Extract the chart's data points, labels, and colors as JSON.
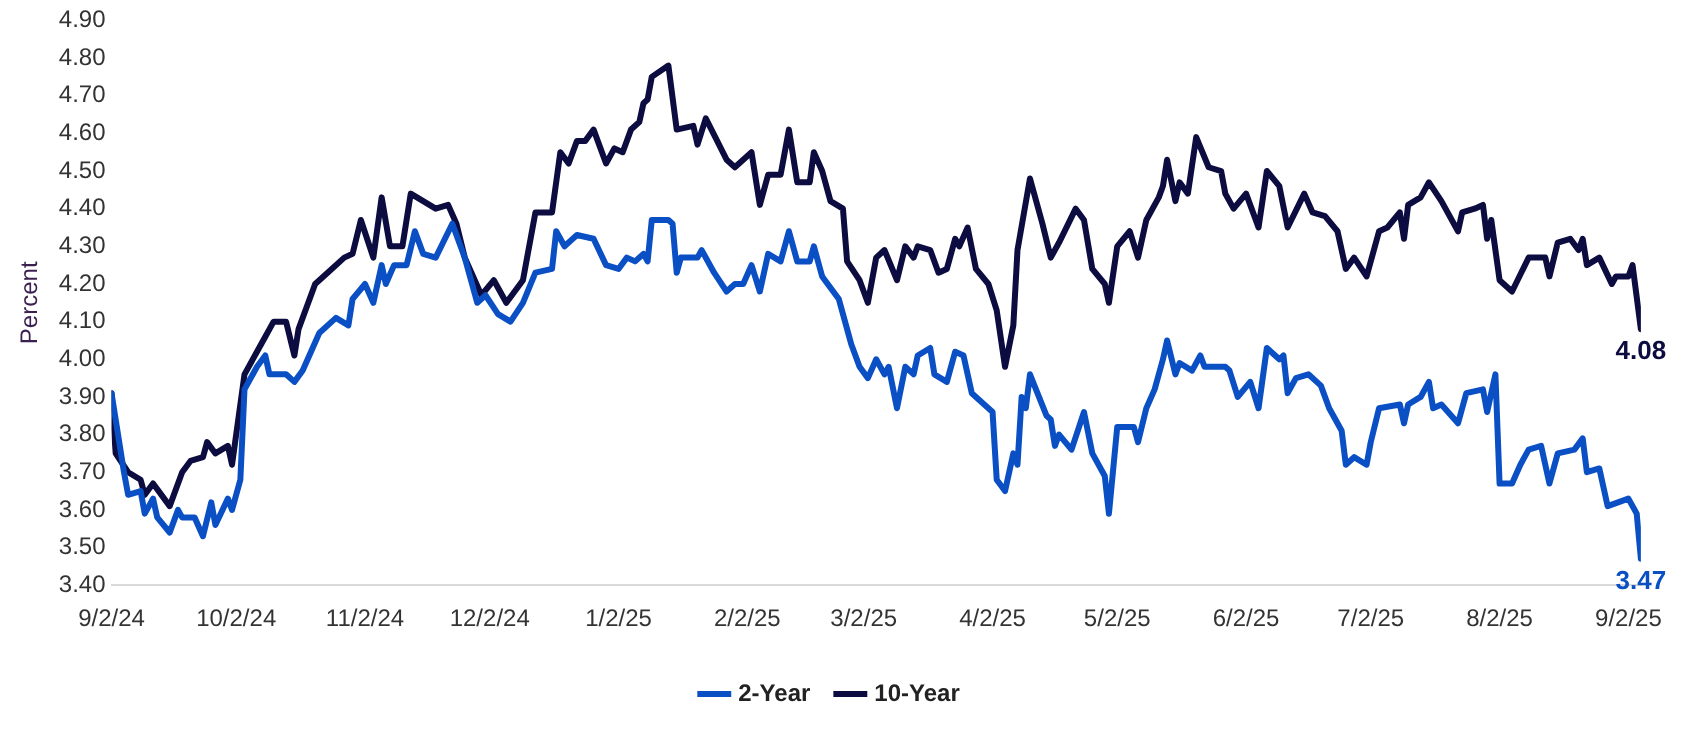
{
  "chart_data": {
    "type": "line",
    "ylabel": "Percent",
    "grid": false,
    "legend": "bottom",
    "marker": "none",
    "line_style": "solid",
    "xticks": [
      {
        "value": "2024-09-02",
        "label": "9/2/24"
      },
      {
        "value": "2024-10-02",
        "label": "10/2/24"
      },
      {
        "value": "2024-11-02",
        "label": "11/2/24"
      },
      {
        "value": "2024-12-02",
        "label": "12/2/24"
      },
      {
        "value": "2025-01-02",
        "label": "1/2/25"
      },
      {
        "value": "2025-02-02",
        "label": "2/2/25"
      },
      {
        "value": "2025-03-02",
        "label": "3/2/25"
      },
      {
        "value": "2025-04-02",
        "label": "4/2/25"
      },
      {
        "value": "2025-05-02",
        "label": "5/2/25"
      },
      {
        "value": "2025-06-02",
        "label": "6/2/25"
      },
      {
        "value": "2025-07-02",
        "label": "7/2/25"
      },
      {
        "value": "2025-08-02",
        "label": "8/2/25"
      },
      {
        "value": "2025-09-02",
        "label": "9/2/25"
      }
    ],
    "xlim": [
      "2024-09-02",
      "2025-09-05"
    ],
    "ylim": [
      3.4,
      4.9
    ],
    "yticks": [
      {
        "value": 3.4,
        "label": "3.40"
      },
      {
        "value": 3.5,
        "label": "3.50"
      },
      {
        "value": 3.6,
        "label": "3.60"
      },
      {
        "value": 3.7,
        "label": "3.70"
      },
      {
        "value": 3.8,
        "label": "3.80"
      },
      {
        "value": 3.9,
        "label": "3.90"
      },
      {
        "value": 4.0,
        "label": "4.00"
      },
      {
        "value": 4.1,
        "label": "4.10"
      },
      {
        "value": 4.2,
        "label": "4.20"
      },
      {
        "value": 4.3,
        "label": "4.30"
      },
      {
        "value": 4.4,
        "label": "4.40"
      },
      {
        "value": 4.5,
        "label": "4.50"
      },
      {
        "value": 4.6,
        "label": "4.60"
      },
      {
        "value": 4.7,
        "label": "4.70"
      },
      {
        "value": 4.8,
        "label": "4.80"
      },
      {
        "value": 4.9,
        "label": "4.90"
      }
    ],
    "series": [
      {
        "name": "2-Year",
        "color": "#0a50c4",
        "x": [
          "2024-09-02",
          "2024-09-05",
          "2024-09-06",
          "2024-09-09",
          "2024-09-10",
          "2024-09-12",
          "2024-09-13",
          "2024-09-16",
          "2024-09-18",
          "2024-09-19",
          "2024-09-22",
          "2024-09-24",
          "2024-09-26",
          "2024-09-27",
          "2024-09-30",
          "2024-10-01",
          "2024-10-03",
          "2024-10-04",
          "2024-10-07",
          "2024-10-09",
          "2024-10-10",
          "2024-10-14",
          "2024-10-16",
          "2024-10-18",
          "2024-10-22",
          "2024-10-26",
          "2024-10-29",
          "2024-10-30",
          "2024-11-02",
          "2024-11-04",
          "2024-11-06",
          "2024-11-07",
          "2024-11-09",
          "2024-11-12",
          "2024-11-14",
          "2024-11-16",
          "2024-11-19",
          "2024-11-23",
          "2024-11-26",
          "2024-11-29",
          "2024-12-01",
          "2024-12-04",
          "2024-12-07",
          "2024-12-10",
          "2024-12-13",
          "2024-12-17",
          "2024-12-18",
          "2024-12-20",
          "2024-12-23",
          "2024-12-27",
          "2024-12-30",
          "2025-01-02",
          "2025-01-04",
          "2025-01-06",
          "2025-01-08",
          "2025-01-09",
          "2025-01-10",
          "2025-01-14",
          "2025-01-15",
          "2025-01-16",
          "2025-01-17",
          "2025-01-21",
          "2025-01-22",
          "2025-01-25",
          "2025-01-28",
          "2025-01-30",
          "2025-02-01",
          "2025-02-03",
          "2025-02-05",
          "2025-02-07",
          "2025-02-10",
          "2025-02-12",
          "2025-02-14",
          "2025-02-17",
          "2025-02-18",
          "2025-02-20",
          "2025-02-22",
          "2025-02-24",
          "2025-02-26",
          "2025-02-27",
          "2025-03-01",
          "2025-03-03",
          "2025-03-05",
          "2025-03-07",
          "2025-03-08",
          "2025-03-10",
          "2025-03-12",
          "2025-03-14",
          "2025-03-15",
          "2025-03-18",
          "2025-03-19",
          "2025-03-22",
          "2025-03-24",
          "2025-03-26",
          "2025-03-28",
          "2025-03-30",
          "2025-04-02",
          "2025-04-03",
          "2025-04-05",
          "2025-04-07",
          "2025-04-08",
          "2025-04-09",
          "2025-04-10",
          "2025-04-11",
          "2025-04-15",
          "2025-04-16",
          "2025-04-17",
          "2025-04-18",
          "2025-04-21",
          "2025-04-24",
          "2025-04-26",
          "2025-04-29",
          "2025-04-30",
          "2025-05-02",
          "2025-05-06",
          "2025-05-07",
          "2025-05-09",
          "2025-05-11",
          "2025-05-13",
          "2025-05-14",
          "2025-05-16",
          "2025-05-17",
          "2025-05-20",
          "2025-05-22",
          "2025-05-23",
          "2025-05-28",
          "2025-05-29",
          "2025-05-31",
          "2025-06-03",
          "2025-06-05",
          "2025-06-07",
          "2025-06-10",
          "2025-06-11",
          "2025-06-12",
          "2025-06-14",
          "2025-06-17",
          "2025-06-20",
          "2025-06-22",
          "2025-06-25",
          "2025-06-26",
          "2025-06-28",
          "2025-07-01",
          "2025-07-02",
          "2025-07-04",
          "2025-07-09",
          "2025-07-10",
          "2025-07-11",
          "2025-07-14",
          "2025-07-16",
          "2025-07-17",
          "2025-07-19",
          "2025-07-23",
          "2025-07-25",
          "2025-07-29",
          "2025-07-30",
          "2025-08-01",
          "2025-08-02",
          "2025-08-05",
          "2025-08-07",
          "2025-08-09",
          "2025-08-12",
          "2025-08-14",
          "2025-08-16",
          "2025-08-20",
          "2025-08-22",
          "2025-08-23",
          "2025-08-26",
          "2025-08-28",
          "2025-09-02",
          "2025-09-04",
          "2025-09-05"
        ],
        "values": [
          3.91,
          3.7,
          3.64,
          3.65,
          3.59,
          3.63,
          3.58,
          3.54,
          3.6,
          3.58,
          3.58,
          3.53,
          3.62,
          3.56,
          3.63,
          3.6,
          3.68,
          3.92,
          3.98,
          4.01,
          3.96,
          3.96,
          3.94,
          3.97,
          4.07,
          4.11,
          4.09,
          4.16,
          4.2,
          4.15,
          4.25,
          4.2,
          4.25,
          4.25,
          4.34,
          4.28,
          4.27,
          4.36,
          4.27,
          4.15,
          4.17,
          4.12,
          4.1,
          4.15,
          4.23,
          4.24,
          4.34,
          4.3,
          4.33,
          4.32,
          4.25,
          4.24,
          4.27,
          4.26,
          4.28,
          4.26,
          4.37,
          4.37,
          4.36,
          4.23,
          4.27,
          4.27,
          4.29,
          4.23,
          4.18,
          4.2,
          4.2,
          4.25,
          4.18,
          4.28,
          4.26,
          4.34,
          4.26,
          4.26,
          4.3,
          4.22,
          4.19,
          4.16,
          4.08,
          4.04,
          3.98,
          3.95,
          4.0,
          3.96,
          3.98,
          3.87,
          3.98,
          3.96,
          4.01,
          4.03,
          3.96,
          3.94,
          4.02,
          4.01,
          3.91,
          3.89,
          3.86,
          3.68,
          3.65,
          3.75,
          3.72,
          3.9,
          3.87,
          3.96,
          3.85,
          3.84,
          3.77,
          3.8,
          3.76,
          3.86,
          3.75,
          3.69,
          3.59,
          3.82,
          3.82,
          3.78,
          3.87,
          3.92,
          4.0,
          4.05,
          3.96,
          3.99,
          3.97,
          4.01,
          3.98,
          3.98,
          3.97,
          3.9,
          3.94,
          3.87,
          4.03,
          4.0,
          4.01,
          3.91,
          3.95,
          3.96,
          3.93,
          3.87,
          3.81,
          3.72,
          3.74,
          3.72,
          3.78,
          3.87,
          3.88,
          3.83,
          3.88,
          3.9,
          3.94,
          3.87,
          3.88,
          3.83,
          3.91,
          3.92,
          3.86,
          3.96,
          3.67,
          3.67,
          3.72,
          3.76,
          3.77,
          3.67,
          3.75,
          3.76,
          3.79,
          3.7,
          3.71,
          3.61,
          3.63,
          3.59,
          3.47
        ]
      },
      {
        "name": "10-Year",
        "color": "#0c0c40",
        "x": [
          "2024-09-02",
          "2024-09-03",
          "2024-09-06",
          "2024-09-09",
          "2024-09-10",
          "2024-09-12",
          "2024-09-16",
          "2024-09-19",
          "2024-09-21",
          "2024-09-24",
          "2024-09-25",
          "2024-09-27",
          "2024-09-30",
          "2024-10-01",
          "2024-10-04",
          "2024-10-07",
          "2024-10-09",
          "2024-10-11",
          "2024-10-14",
          "2024-10-16",
          "2024-10-17",
          "2024-10-21",
          "2024-10-24",
          "2024-10-28",
          "2024-10-30",
          "2024-11-01",
          "2024-11-04",
          "2024-11-06",
          "2024-11-08",
          "2024-11-11",
          "2024-11-13",
          "2024-11-16",
          "2024-11-19",
          "2024-11-22",
          "2024-11-24",
          "2024-11-26",
          "2024-11-30",
          "2024-12-03",
          "2024-12-06",
          "2024-12-10",
          "2024-12-13",
          "2024-12-17",
          "2024-12-19",
          "2024-12-21",
          "2024-12-23",
          "2024-12-25",
          "2024-12-27",
          "2024-12-30",
          "2025-01-01",
          "2025-01-03",
          "2025-01-05",
          "2025-01-07",
          "2025-01-08",
          "2025-01-09",
          "2025-01-10",
          "2025-01-14",
          "2025-01-16",
          "2025-01-20",
          "2025-01-21",
          "2025-01-23",
          "2025-01-28",
          "2025-01-30",
          "2025-02-03",
          "2025-02-05",
          "2025-02-07",
          "2025-02-10",
          "2025-02-12",
          "2025-02-14",
          "2025-02-17",
          "2025-02-18",
          "2025-02-20",
          "2025-02-22",
          "2025-02-25",
          "2025-02-26",
          "2025-03-01",
          "2025-03-03",
          "2025-03-05",
          "2025-03-07",
          "2025-03-10",
          "2025-03-12",
          "2025-03-14",
          "2025-03-15",
          "2025-03-18",
          "2025-03-20",
          "2025-03-22",
          "2025-03-24",
          "2025-03-25",
          "2025-03-27",
          "2025-03-29",
          "2025-04-01",
          "2025-04-03",
          "2025-04-05",
          "2025-04-07",
          "2025-04-08",
          "2025-04-11",
          "2025-04-14",
          "2025-04-16",
          "2025-04-18",
          "2025-04-22",
          "2025-04-24",
          "2025-04-26",
          "2025-04-29",
          "2025-04-30",
          "2025-05-02",
          "2025-05-05",
          "2025-05-07",
          "2025-05-09",
          "2025-05-12",
          "2025-05-13",
          "2025-05-14",
          "2025-05-16",
          "2025-05-17",
          "2025-05-19",
          "2025-05-21",
          "2025-05-24",
          "2025-05-27",
          "2025-05-28",
          "2025-05-30",
          "2025-06-02",
          "2025-06-05",
          "2025-06-07",
          "2025-06-10",
          "2025-06-12",
          "2025-06-16",
          "2025-06-18",
          "2025-06-21",
          "2025-06-24",
          "2025-06-26",
          "2025-06-28",
          "2025-07-01",
          "2025-07-04",
          "2025-07-06",
          "2025-07-09",
          "2025-07-10",
          "2025-07-11",
          "2025-07-14",
          "2025-07-16",
          "2025-07-19",
          "2025-07-23",
          "2025-07-24",
          "2025-07-27",
          "2025-07-29",
          "2025-07-30",
          "2025-07-31",
          "2025-08-02",
          "2025-08-05",
          "2025-08-09",
          "2025-08-13",
          "2025-08-14",
          "2025-08-16",
          "2025-08-19",
          "2025-08-21",
          "2025-08-22",
          "2025-08-23",
          "2025-08-26",
          "2025-08-29",
          "2025-08-30",
          "2025-09-02",
          "2025-09-03",
          "2025-09-05"
        ],
        "values": [
          3.91,
          3.75,
          3.7,
          3.68,
          3.64,
          3.67,
          3.61,
          3.7,
          3.73,
          3.74,
          3.78,
          3.75,
          3.77,
          3.72,
          3.96,
          4.02,
          4.06,
          4.1,
          4.1,
          4.01,
          4.08,
          4.2,
          4.23,
          4.27,
          4.28,
          4.37,
          4.27,
          4.43,
          4.3,
          4.3,
          4.44,
          4.42,
          4.4,
          4.41,
          4.36,
          4.27,
          4.17,
          4.21,
          4.15,
          4.21,
          4.39,
          4.39,
          4.55,
          4.52,
          4.58,
          4.58,
          4.61,
          4.52,
          4.56,
          4.55,
          4.61,
          4.63,
          4.68,
          4.69,
          4.75,
          4.78,
          4.61,
          4.62,
          4.57,
          4.64,
          4.53,
          4.51,
          4.55,
          4.41,
          4.49,
          4.49,
          4.61,
          4.47,
          4.47,
          4.55,
          4.5,
          4.42,
          4.4,
          4.26,
          4.21,
          4.15,
          4.27,
          4.29,
          4.21,
          4.3,
          4.27,
          4.3,
          4.29,
          4.23,
          4.24,
          4.32,
          4.3,
          4.35,
          4.24,
          4.2,
          4.13,
          3.98,
          4.09,
          4.29,
          4.48,
          4.36,
          4.27,
          4.31,
          4.4,
          4.37,
          4.24,
          4.2,
          4.15,
          4.3,
          4.34,
          4.27,
          4.37,
          4.43,
          4.46,
          4.53,
          4.42,
          4.47,
          4.44,
          4.59,
          4.51,
          4.5,
          4.44,
          4.4,
          4.44,
          4.35,
          4.5,
          4.46,
          4.35,
          4.44,
          4.39,
          4.38,
          4.34,
          4.24,
          4.27,
          4.22,
          4.34,
          4.35,
          4.39,
          4.32,
          4.41,
          4.43,
          4.47,
          4.42,
          4.34,
          4.39,
          4.4,
          4.41,
          4.32,
          4.37,
          4.21,
          4.18,
          4.27,
          4.27,
          4.22,
          4.31,
          4.32,
          4.29,
          4.32,
          4.25,
          4.27,
          4.2,
          4.22,
          4.22,
          4.25,
          4.08
        ]
      }
    ],
    "annotations": [
      {
        "text": "4.08",
        "x": "2025-09-05",
        "y": 4.08
      },
      {
        "text": "3.47",
        "x": "2025-09-05",
        "y": 3.47
      }
    ]
  }
}
